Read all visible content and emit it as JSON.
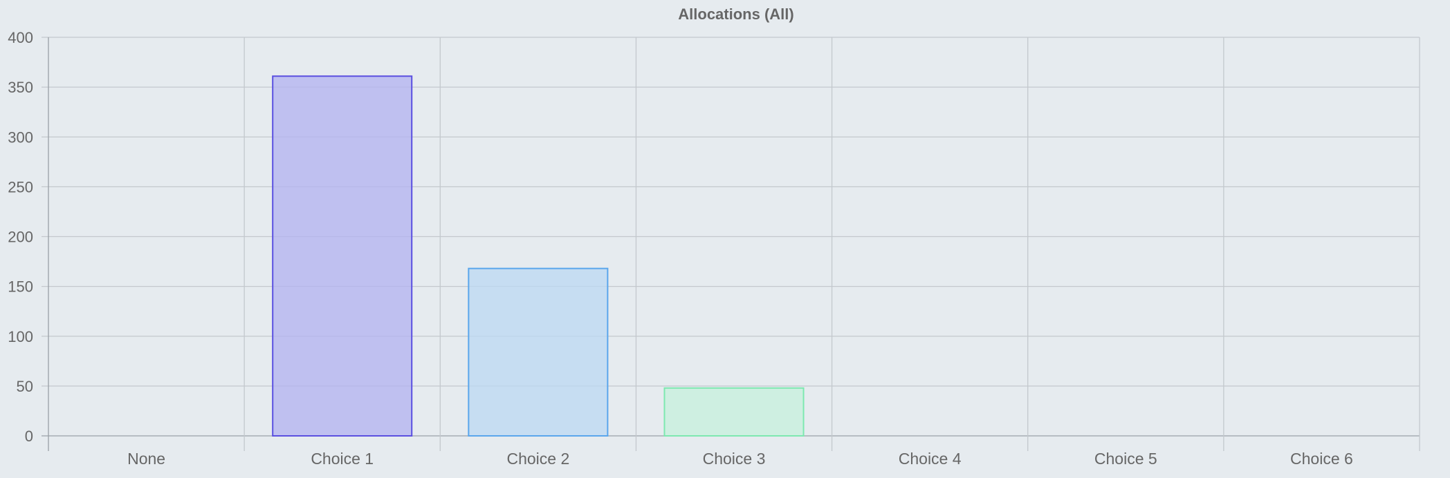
{
  "chart_data": {
    "type": "bar",
    "title": "Allocations (All)",
    "categories": [
      "None",
      "Choice 1",
      "Choice 2",
      "Choice 3",
      "Choice 4",
      "Choice 5",
      "Choice 6"
    ],
    "values": [
      0,
      361,
      168,
      48,
      0,
      0,
      0
    ],
    "ylim": [
      0,
      400
    ],
    "yticks": [
      0,
      50,
      100,
      150,
      200,
      250,
      300,
      350,
      400
    ],
    "grid": true,
    "bar_colors": [
      {
        "fill": "#b4b4f0",
        "stroke": "#5a4fe0"
      },
      {
        "fill": "#b4b4f0",
        "stroke": "#5a4fe0"
      },
      {
        "fill": "#bcd8f2",
        "stroke": "#5aa6ec"
      },
      {
        "fill": "#c6efdc",
        "stroke": "#7de8b0"
      },
      {
        "fill": "#e6d8f2",
        "stroke": "#c99ae8"
      },
      {
        "fill": "#f2e6c6",
        "stroke": "#e8c97d"
      },
      {
        "fill": "#f2c6c6",
        "stroke": "#e87d7d"
      }
    ],
    "xlabel": "",
    "ylabel": ""
  }
}
